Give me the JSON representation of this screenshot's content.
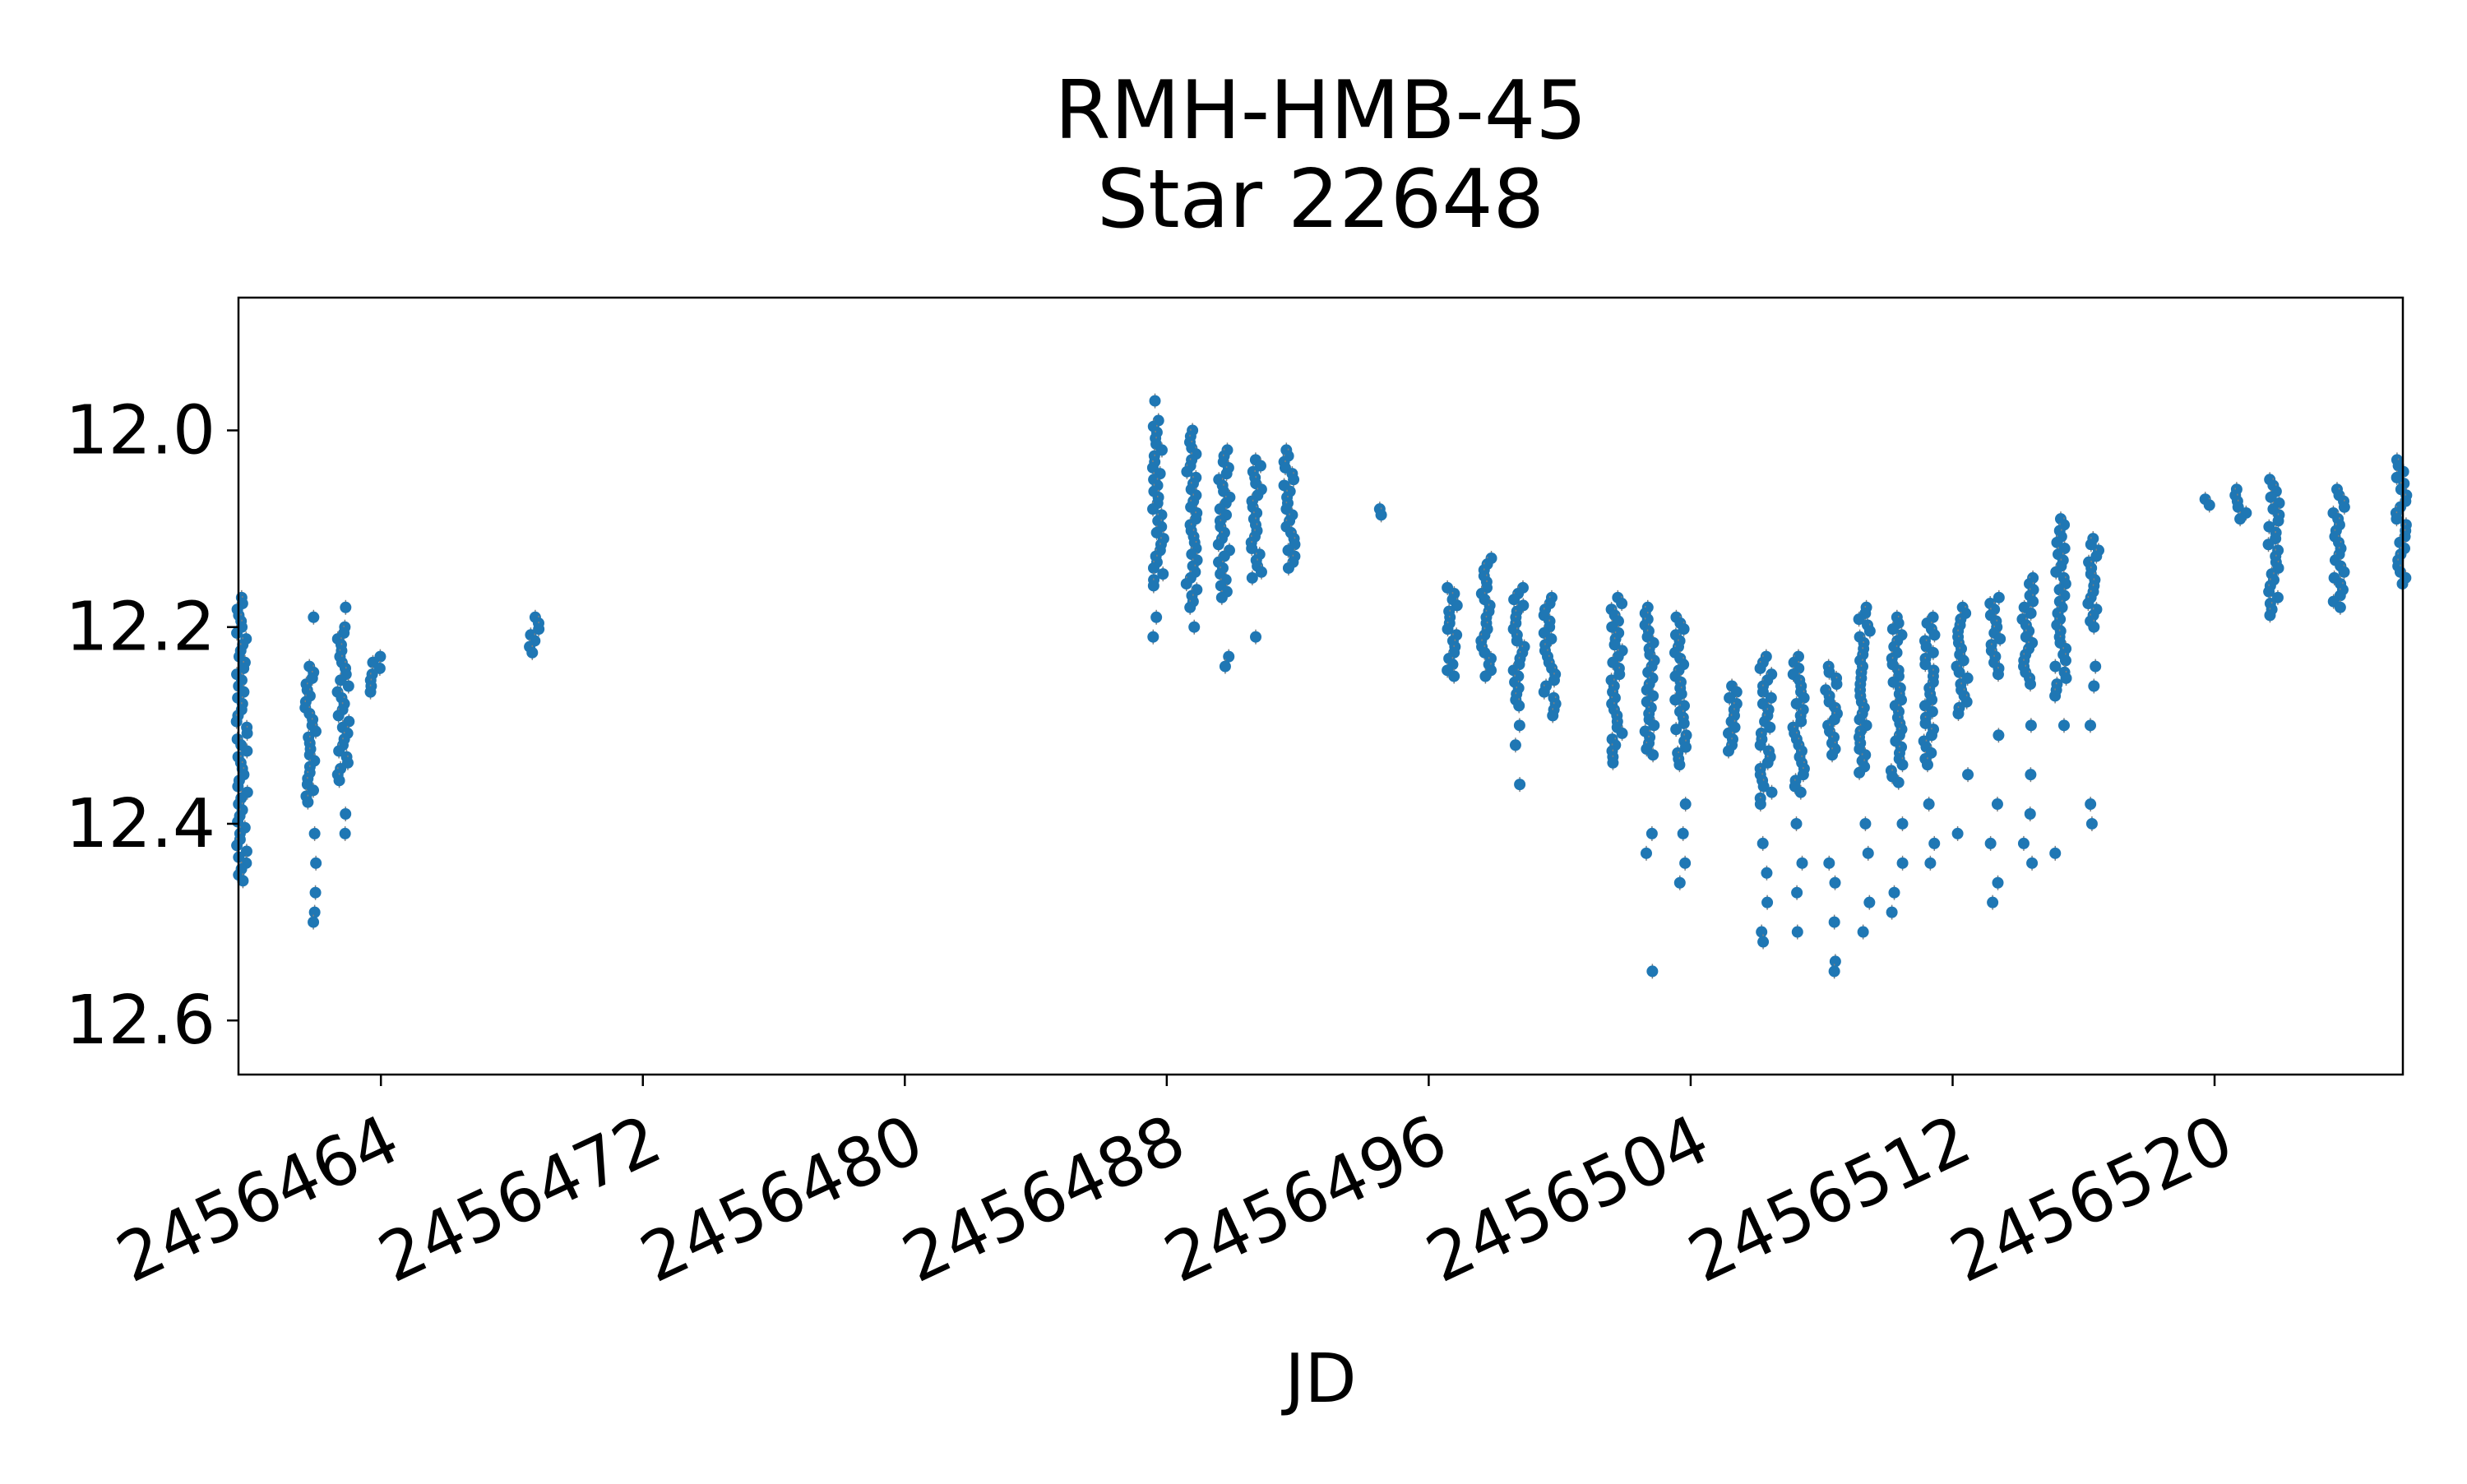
{
  "chart_data": {
    "type": "scatter",
    "title": [
      "RMH-HMB-45",
      "Star 22648"
    ],
    "xlabel": "JD",
    "ylabel": "",
    "xlim": [
      2456459.65,
      2456525.75
    ],
    "ylim": [
      12.655,
      11.865
    ],
    "y_inverted": true,
    "x_ticks": [
      2456464,
      2456472,
      2456480,
      2456488,
      2456496,
      2456504,
      2456512,
      2456520
    ],
    "x_tick_labels": [
      "2456464",
      "2456472",
      "2456480",
      "2456488",
      "2456496",
      "2456504",
      "2456512",
      "2456520"
    ],
    "y_ticks": [
      12.0,
      12.2,
      12.4,
      12.6
    ],
    "y_tick_labels": [
      "12.0",
      "12.2",
      "12.4",
      "12.6"
    ],
    "grid": false,
    "legend": "none",
    "marker_color": "#1f77b4",
    "errorbar_color": "#7f7f7f",
    "nights": [
      {
        "x": 2456459.75,
        "y_min": 12.17,
        "y_max": 12.46,
        "outliers": []
      },
      {
        "x": 2456461.85,
        "y_min": 12.24,
        "y_max": 12.38,
        "outliers": [
          12.19,
          12.41,
          12.44,
          12.47,
          12.49,
          12.5
        ]
      },
      {
        "x": 2456462.85,
        "y_min": 12.2,
        "y_max": 12.36,
        "outliers": [
          12.18,
          12.39,
          12.41
        ]
      },
      {
        "x": 2456463.85,
        "y_min": 12.23,
        "y_max": 12.27,
        "outliers": []
      },
      {
        "x": 2456468.7,
        "y_min": 12.19,
        "y_max": 12.23,
        "outliers": []
      },
      {
        "x": 2456487.75,
        "y_min": 11.99,
        "y_max": 12.16,
        "outliers": [
          11.97,
          12.19,
          12.21
        ]
      },
      {
        "x": 2456488.75,
        "y_min": 12.0,
        "y_max": 12.18,
        "outliers": [
          12.2
        ]
      },
      {
        "x": 2456489.75,
        "y_min": 12.02,
        "y_max": 12.17,
        "outliers": [
          12.23,
          12.24
        ]
      },
      {
        "x": 2456490.75,
        "y_min": 12.03,
        "y_max": 12.15,
        "outliers": [
          12.21
        ]
      },
      {
        "x": 2456491.75,
        "y_min": 12.02,
        "y_max": 12.14,
        "outliers": []
      },
      {
        "x": 2456494.65,
        "y_min": 12.08,
        "y_max": 12.09,
        "outliers": []
      },
      {
        "x": 2456496.7,
        "y_min": 12.16,
        "y_max": 12.25,
        "outliers": []
      },
      {
        "x": 2456497.75,
        "y_min": 12.13,
        "y_max": 12.25,
        "outliers": []
      },
      {
        "x": 2456498.75,
        "y_min": 12.16,
        "y_max": 12.28,
        "outliers": [
          12.3,
          12.32,
          12.36
        ]
      },
      {
        "x": 2456499.7,
        "y_min": 12.17,
        "y_max": 12.29,
        "outliers": []
      },
      {
        "x": 2456501.75,
        "y_min": 12.17,
        "y_max": 12.34,
        "outliers": []
      },
      {
        "x": 2456502.75,
        "y_min": 12.18,
        "y_max": 12.33,
        "outliers": [
          12.41,
          12.43,
          12.55
        ]
      },
      {
        "x": 2456503.7,
        "y_min": 12.19,
        "y_max": 12.34,
        "outliers": [
          12.38,
          12.41,
          12.44,
          12.46
        ]
      },
      {
        "x": 2456505.3,
        "y_min": 12.26,
        "y_max": 12.33,
        "outliers": []
      },
      {
        "x": 2456506.3,
        "y_min": 12.23,
        "y_max": 12.38,
        "outliers": [
          12.42,
          12.45,
          12.48,
          12.51,
          12.52
        ]
      },
      {
        "x": 2456507.3,
        "y_min": 12.23,
        "y_max": 12.37,
        "outliers": [
          12.4,
          12.44,
          12.47,
          12.51
        ]
      },
      {
        "x": 2456508.3,
        "y_min": 12.24,
        "y_max": 12.33,
        "outliers": [
          12.44,
          12.46,
          12.5,
          12.54,
          12.55
        ]
      },
      {
        "x": 2456509.3,
        "y_min": 12.18,
        "y_max": 12.35,
        "outliers": [
          12.4,
          12.43,
          12.48,
          12.51
        ]
      },
      {
        "x": 2456510.3,
        "y_min": 12.19,
        "y_max": 12.36,
        "outliers": [
          12.4,
          12.44,
          12.47,
          12.49
        ]
      },
      {
        "x": 2456511.3,
        "y_min": 12.19,
        "y_max": 12.34,
        "outliers": [
          12.38,
          12.42,
          12.44
        ]
      },
      {
        "x": 2456512.3,
        "y_min": 12.18,
        "y_max": 12.29,
        "outliers": [
          12.35,
          12.41
        ]
      },
      {
        "x": 2456513.3,
        "y_min": 12.17,
        "y_max": 12.25,
        "outliers": [
          12.31,
          12.38,
          12.42,
          12.46,
          12.48
        ]
      },
      {
        "x": 2456514.3,
        "y_min": 12.15,
        "y_max": 12.26,
        "outliers": [
          12.3,
          12.35,
          12.39,
          12.42,
          12.44
        ]
      },
      {
        "x": 2456515.3,
        "y_min": 12.09,
        "y_max": 12.27,
        "outliers": [
          12.3,
          12.43
        ]
      },
      {
        "x": 2456516.3,
        "y_min": 12.11,
        "y_max": 12.2,
        "outliers": [
          12.24,
          12.26,
          12.3,
          12.38,
          12.4
        ]
      },
      {
        "x": 2456519.8,
        "y_min": 12.07,
        "y_max": 12.08,
        "outliers": []
      },
      {
        "x": 2456520.8,
        "y_min": 12.06,
        "y_max": 12.09,
        "outliers": []
      },
      {
        "x": 2456521.8,
        "y_min": 12.05,
        "y_max": 12.19,
        "outliers": []
      },
      {
        "x": 2456523.8,
        "y_min": 12.06,
        "y_max": 12.18,
        "outliers": []
      },
      {
        "x": 2456525.7,
        "y_min": 12.03,
        "y_max": 12.16,
        "outliers": []
      }
    ]
  }
}
